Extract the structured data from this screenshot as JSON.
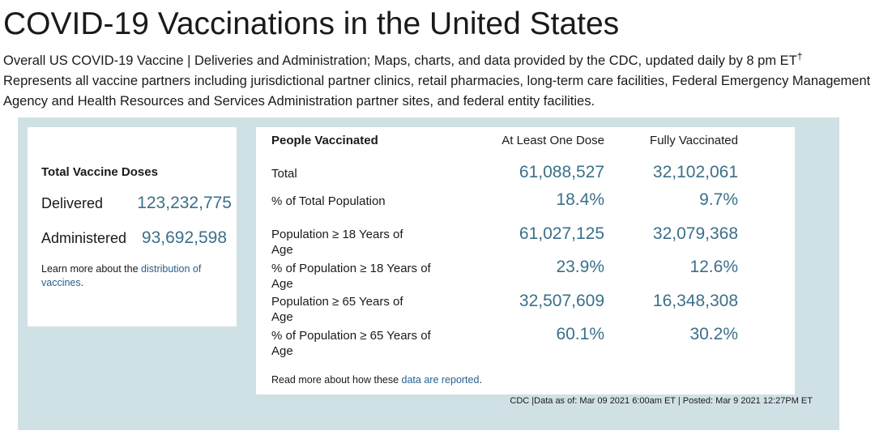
{
  "page": {
    "title": "COVID-19 Vaccinations in the United States",
    "subtitle_line1": "Overall US COVID-19 Vaccine | Deliveries and Administration; Maps, charts, and data provided by the CDC, updated daily by 8 pm ET",
    "subtitle_dagger": "†",
    "subtitle_line2": "Represents all vaccine partners including jurisdictional partner clinics, retail pharmacies, long-term care facilities, Federal Emergency Management Agency and Health Resources and Services Administration partner sites, and federal entity facilities."
  },
  "totals": {
    "heading": "Total Vaccine Doses",
    "delivered_label": "Delivered",
    "delivered_value": "123,232,775",
    "administered_label": "Administered",
    "administered_value": "93,692,598",
    "learn_prefix": "Learn more about the ",
    "learn_link": "distribution of vaccines",
    "learn_suffix": "."
  },
  "people": {
    "heading": "People Vaccinated",
    "col1": "At Least One Dose",
    "col2": "Fully Vaccinated",
    "rows": [
      {
        "label": "Total",
        "one_dose": "61,088,527",
        "fully": "32,102,061"
      },
      {
        "label": "% of Total Population",
        "one_dose": "18.4%",
        "fully": "9.7%"
      },
      {
        "label": "Population ≥ 18 Years of Age",
        "one_dose": "61,027,125",
        "fully": "32,079,368"
      },
      {
        "label": "% of Population ≥ 18 Years of Age",
        "one_dose": "23.9%",
        "fully": "12.6%"
      },
      {
        "label": "Population ≥ 65 Years of Age",
        "one_dose": "32,507,609",
        "fully": "16,348,308"
      },
      {
        "label": "% of Population ≥ 65 Years of Age",
        "one_dose": "60.1%",
        "fully": "30.2%"
      }
    ],
    "read_prefix": "Read more about how these ",
    "read_link": "data are reported",
    "read_suffix": "."
  },
  "footer": "CDC |Data as of: Mar 09 2021 6:00am ET | Posted: Mar 9 2021 12:27PM ET",
  "colors": {
    "panel_bg": "#d0e1e6",
    "number": "#3a7089",
    "link": "#2a5e8c"
  }
}
